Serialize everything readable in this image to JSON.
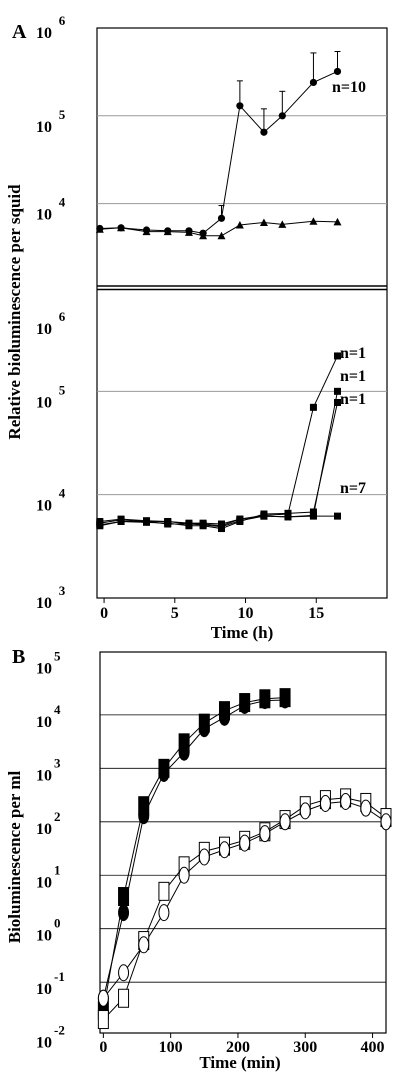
{
  "chart_data": [
    {
      "panel_label": "A",
      "type": "line",
      "y_scale": "log",
      "ylabel": "Relative bioluminescence per squid",
      "xlabel": "Time (h)",
      "x_ticks": [
        "0",
        "5",
        "10",
        "15"
      ],
      "xlim": [
        -0.5,
        20
      ],
      "subplots": [
        {
          "ylim": [
            1000,
            1000000
          ],
          "y_ticks": [
            {
              "base": "10",
              "exp": "4"
            },
            {
              "base": "10",
              "exp": "5"
            },
            {
              "base": "10",
              "exp": "6"
            }
          ],
          "gridlines": [
            10000,
            100000
          ],
          "annotations": [
            "n=10"
          ],
          "series": [
            {
              "marker": "circle",
              "x": [
                -0.3,
                1.2,
                3,
                4.5,
                6,
                7,
                8.3,
                9.6,
                11.3,
                12.6,
                14.8,
                16.5
              ],
              "y": [
                5200,
                5300,
                5000,
                4900,
                4900,
                4600,
                6800,
                130000,
                65000,
                100000,
                240000,
                320000
              ],
              "err_plus": [
                null,
                null,
                null,
                null,
                null,
                null,
                9500,
                250000,
                120000,
                190000,
                520000,
                540000
              ]
            },
            {
              "marker": "triangle",
              "x": [
                -0.3,
                1.2,
                3,
                4.5,
                6,
                7,
                8.3,
                9.6,
                11.3,
                12.6,
                14.8,
                16.5
              ],
              "y": [
                5100,
                5300,
                4800,
                4800,
                4700,
                4300,
                4300,
                5700,
                6100,
                5800,
                6300,
                6200
              ]
            }
          ]
        },
        {
          "ylim": [
            1000,
            1000000
          ],
          "y_ticks": [
            {
              "base": "10",
              "exp": "3"
            },
            {
              "base": "10",
              "exp": "4"
            },
            {
              "base": "10",
              "exp": "5"
            },
            {
              "base": "10",
              "exp": "6"
            }
          ],
          "gridlines": [
            10000,
            100000
          ],
          "annotations": [
            "n=1",
            "n=1",
            "n=1",
            "n=7"
          ],
          "series": [
            {
              "name": "n=1",
              "marker": "square",
              "x": [
                -0.3,
                1.2,
                3,
                4.5,
                6,
                7,
                8.3,
                9.6,
                11.3,
                13,
                14.8,
                16.5
              ],
              "y": [
                5500,
                5800,
                5600,
                5500,
                5300,
                5300,
                5200,
                5800,
                6300,
                6500,
                70000,
                220000
              ]
            },
            {
              "name": "n=1",
              "marker": "square",
              "x": [
                -0.3,
                1.2,
                3,
                4.5,
                6,
                7,
                8.3,
                9.6,
                11.3,
                13,
                14.8,
                16.5
              ],
              "y": [
                5300,
                5700,
                5500,
                5500,
                5200,
                5200,
                5000,
                5800,
                6200,
                6100,
                6300,
                100000
              ]
            },
            {
              "name": "n=1",
              "marker": "square",
              "x": [
                -0.3,
                1.2,
                3,
                4.5,
                6,
                7,
                8.3,
                9.6,
                11.3,
                13,
                14.8,
                16.5
              ],
              "y": [
                5000,
                5500,
                5400,
                5300,
                5000,
                5000,
                4700,
                5500,
                6500,
                6600,
                6800,
                78000
              ]
            },
            {
              "name": "n=7",
              "marker": "square",
              "x": [
                -0.3,
                1.2,
                3,
                4.5,
                6,
                7,
                8.3,
                9.6,
                11.3,
                13,
                14.8,
                16.5
              ],
              "y": [
                5100,
                5500,
                5500,
                5200,
                5200,
                5100,
                4900,
                5600,
                6200,
                6100,
                6200,
                6200
              ]
            }
          ]
        }
      ]
    },
    {
      "panel_label": "B",
      "type": "line",
      "y_scale": "log",
      "ylabel": "Bioluminescence per ml",
      "xlabel": "Time (min)",
      "x_ticks": [
        "0",
        "100",
        "200",
        "300",
        "400"
      ],
      "xlim": [
        -5,
        420
      ],
      "ylim": [
        0.01,
        100000
      ],
      "y_ticks": [
        {
          "base": "10",
          "exp": "-2"
        },
        {
          "base": "10",
          "exp": "-1"
        },
        {
          "base": "10",
          "exp": "0"
        },
        {
          "base": "10",
          "exp": "1"
        },
        {
          "base": "10",
          "exp": "2"
        },
        {
          "base": "10",
          "exp": "3"
        },
        {
          "base": "10",
          "exp": "4"
        },
        {
          "base": "10",
          "exp": "5"
        }
      ],
      "gridlines": [
        0.1,
        1,
        10,
        100,
        1000,
        10000
      ],
      "series": [
        {
          "marker": "square-filled",
          "x": [
            0,
            30,
            60,
            90,
            120,
            150,
            180,
            210,
            240,
            270
          ],
          "y": [
            0.03,
            4,
            200,
            1000,
            3000,
            7000,
            12000,
            17000,
            20000,
            21000
          ]
        },
        {
          "marker": "circle-filled",
          "x": [
            0,
            30,
            60,
            90,
            120,
            150,
            180,
            210,
            240,
            270
          ],
          "y": [
            0.05,
            2,
            130,
            800,
            2000,
            5500,
            9000,
            15000,
            18500,
            19000
          ]
        },
        {
          "marker": "square-open",
          "x": [
            0,
            30,
            60,
            90,
            120,
            150,
            180,
            210,
            240,
            270,
            300,
            330,
            360,
            390,
            420
          ],
          "y": [
            0.02,
            0.05,
            0.6,
            5,
            15,
            28,
            35,
            45,
            65,
            110,
            200,
            260,
            280,
            230,
            120
          ]
        },
        {
          "marker": "circle-open",
          "x": [
            0,
            30,
            60,
            90,
            120,
            150,
            180,
            210,
            240,
            270,
            300,
            330,
            360,
            390,
            420
          ],
          "y": [
            0.05,
            0.15,
            0.5,
            2,
            10,
            22,
            30,
            40,
            60,
            100,
            160,
            220,
            240,
            180,
            100
          ]
        }
      ]
    }
  ]
}
